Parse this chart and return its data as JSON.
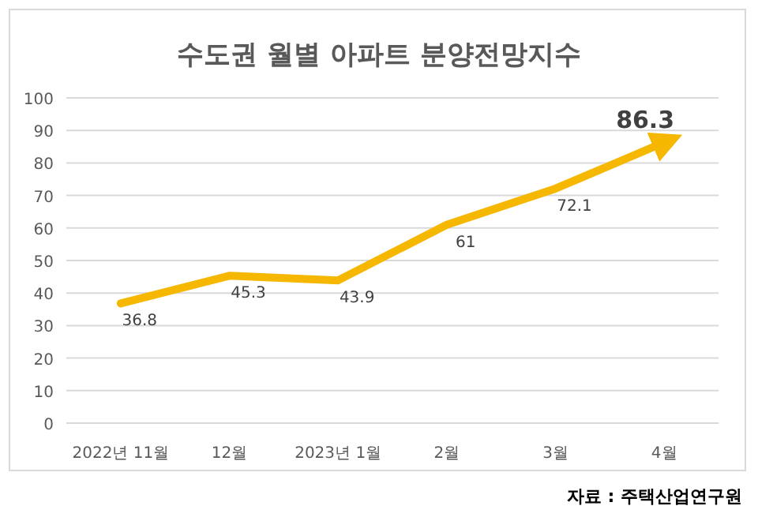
{
  "chart_data": {
    "type": "line",
    "title": "수도권 월별 아파트 분양전망지수",
    "categories": [
      "2022년 11월",
      "12월",
      "2023년 1월",
      "2월",
      "3월",
      "4월"
    ],
    "series": [
      {
        "color": "#f5b700",
        "values": [
          36.8,
          45.3,
          43.9,
          61,
          72.1,
          86.3
        ]
      }
    ],
    "ylim": [
      0,
      100
    ],
    "yticks": [
      0,
      10,
      20,
      30,
      40,
      50,
      60,
      70,
      80,
      90,
      100
    ],
    "grid": "y",
    "data_labels": true,
    "marker": "none",
    "line_style": "solid",
    "annotations": [
      "자료 : 주택산업연구원"
    ]
  }
}
